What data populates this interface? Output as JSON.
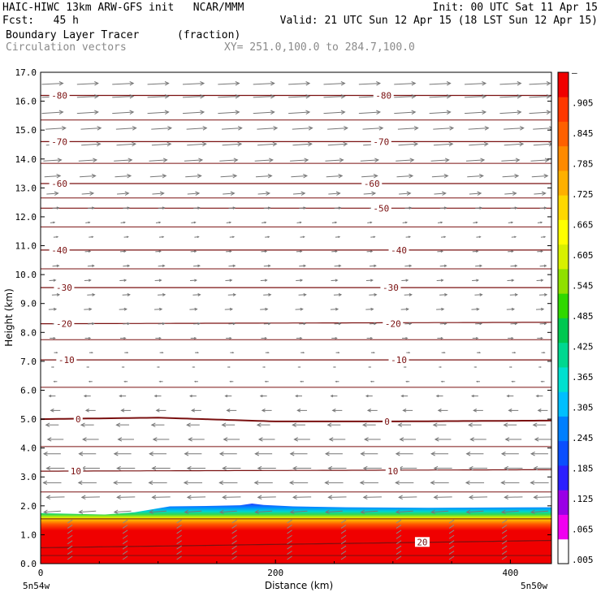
{
  "header": {
    "line1_left": "HAIC-HIWC 13km ARW-GFS init   NCAR/MMM",
    "line1_right": "Init: 00 UTC Sat 11 Apr 15",
    "line2_left": "Fcst:   45 h",
    "line2_right": "Valid: 21 UTC Sun 12 Apr 15 (18 LST Sun 12 Apr 15)",
    "line3_field": "Boundary Layer Tracer",
    "line3_unit": "(fraction)",
    "line4_overlay": "Circulation vectors",
    "line4_xy": "XY= 251.0,100.0 to 284.7,100.0"
  },
  "axes": {
    "ylabel": "Height (km)",
    "xlabel": "Distance (km)",
    "left_end": "5n54w",
    "right_end": "5n50w"
  },
  "chart_data": {
    "type": "heatmap",
    "title": "Boundary Layer Tracer",
    "xlabel": "Distance (km)",
    "ylabel": "Height (km)",
    "xlim": [
      0,
      435
    ],
    "ylim": [
      0,
      17
    ],
    "x_ticks": [
      0,
      200,
      400
    ],
    "y_ticks": [
      "0.0",
      "1.0",
      "2.0",
      "3.0",
      "4.0",
      "5.0",
      "6.0",
      "7.0",
      "8.0",
      "9.0",
      "10.0",
      "11.0",
      "12.0",
      "13.0",
      "14.0",
      "15.0",
      "16.0",
      "17.0"
    ],
    "colorbar": {
      "labels": [
        ".005",
        ".065",
        ".125",
        ".185",
        ".245",
        ".305",
        ".365",
        ".425",
        ".485",
        ".545",
        ".605",
        ".665",
        ".725",
        ".785",
        ".845",
        ".905",
        "–"
      ],
      "colors": [
        "#ffffff",
        "#f000f0",
        "#9a00e6",
        "#2c1fff",
        "#0a4fff",
        "#007fff",
        "#00bfff",
        "#00e0d0",
        "#00d890",
        "#00c850",
        "#30d800",
        "#90e000",
        "#d8f000",
        "#ffff00",
        "#ffd800",
        "#ffb000",
        "#ff8a00",
        "#ff6000",
        "#ff3800",
        "#f00000"
      ]
    },
    "tracer_layer": {
      "top_km": [
        [
          0,
          1.75
        ],
        [
          30,
          1.72
        ],
        [
          55,
          1.7
        ],
        [
          80,
          1.78
        ],
        [
          110,
          1.98
        ],
        [
          150,
          2.0
        ],
        [
          170,
          2.02
        ],
        [
          180,
          2.08
        ],
        [
          190,
          2.03
        ],
        [
          215,
          1.98
        ],
        [
          260,
          1.95
        ],
        [
          330,
          1.93
        ],
        [
          435,
          1.95
        ]
      ],
      "blue_fringe_km": 0.22
    },
    "contours": {
      "name": "temperature (C)",
      "levels": [
        {
          "value": 20,
          "label": "20",
          "heights": [
            [
              0,
              0.55
            ],
            [
              435,
              0.8
            ]
          ],
          "labels_at": [
            [
              325,
              0.75
            ]
          ]
        },
        {
          "value": 10,
          "label": "10",
          "heights": [
            [
              0,
              3.2
            ],
            [
              435,
              3.25
            ]
          ],
          "labels_at": [
            [
              30,
              3.2
            ],
            [
              300,
              3.2
            ]
          ]
        },
        {
          "value": 0,
          "label": "0",
          "heights": [
            [
              0,
              5.0
            ],
            [
              100,
              5.05
            ],
            [
              200,
              4.92
            ],
            [
              300,
              4.92
            ],
            [
              435,
              4.95
            ]
          ],
          "labels_at": [
            [
              32,
              5.0
            ],
            [
              295,
              4.92
            ]
          ]
        },
        {
          "value": -10,
          "label": "-10",
          "heights": [
            [
              0,
              7.05
            ],
            [
              435,
              7.05
            ]
          ],
          "labels_at": [
            [
              22,
              7.05
            ],
            [
              305,
              7.05
            ]
          ]
        },
        {
          "value": -20,
          "label": "-20",
          "heights": [
            [
              0,
              8.3
            ],
            [
              435,
              8.35
            ]
          ],
          "labels_at": [
            [
              20,
              8.3
            ],
            [
              300,
              8.3
            ]
          ]
        },
        {
          "value": -30,
          "label": "-30",
          "heights": [
            [
              0,
              9.55
            ],
            [
              435,
              9.55
            ]
          ],
          "labels_at": [
            [
              20,
              9.55
            ],
            [
              298,
              9.55
            ]
          ]
        },
        {
          "value": -40,
          "label": "-40",
          "heights": [
            [
              0,
              10.85
            ],
            [
              435,
              10.85
            ]
          ],
          "labels_at": [
            [
              16,
              10.85
            ],
            [
              305,
              10.85
            ]
          ]
        },
        {
          "value": -50,
          "label": "-50",
          "heights": [
            [
              0,
              12.3
            ],
            [
              435,
              12.3
            ]
          ],
          "labels_at": [
            [
              290,
              12.3
            ]
          ]
        },
        {
          "value": -60,
          "label": "-60",
          "heights": [
            [
              0,
              13.15
            ],
            [
              435,
              13.15
            ]
          ],
          "labels_at": [
            [
              16,
              13.15
            ],
            [
              282,
              13.15
            ]
          ]
        },
        {
          "value": -70,
          "label": "-70",
          "heights": [
            [
              0,
              14.6
            ],
            [
              435,
              14.6
            ]
          ],
          "labels_at": [
            [
              16,
              14.6
            ],
            [
              290,
              14.6
            ]
          ]
        },
        {
          "value": -80,
          "label": "-80",
          "heights": [
            [
              0,
              16.2
            ],
            [
              435,
              16.2
            ]
          ],
          "labels_at": [
            [
              16,
              16.2
            ],
            [
              292,
              16.2
            ]
          ]
        }
      ],
      "unlabeled_levels_km": [
        0.28,
        1.55,
        2.48,
        4.05,
        6.1,
        7.75,
        10.2,
        11.65,
        12.65,
        13.85,
        15.35
      ]
    },
    "vectors": {
      "name": "Circulation vectors",
      "x_positions_km": [
        10,
        40,
        70,
        100,
        130,
        160,
        190,
        220,
        250,
        280,
        310,
        340,
        370,
        400,
        425
      ],
      "rows": [
        {
          "z_km": 16.6,
          "u": 1.0,
          "w": 0.05
        },
        {
          "z_km": 16.15,
          "u": 1.0,
          "w": 0.05
        },
        {
          "z_km": 15.6,
          "u": 1.0,
          "w": 0.06
        },
        {
          "z_km": 15.05,
          "u": 0.95,
          "w": 0.06
        },
        {
          "z_km": 14.5,
          "u": 0.9,
          "w": 0.06
        },
        {
          "z_km": 13.95,
          "u": 0.85,
          "w": 0.05
        },
        {
          "z_km": 13.4,
          "u": 0.75,
          "w": 0.05
        },
        {
          "z_km": 12.8,
          "u": 0.55,
          "w": 0.04
        },
        {
          "z_km": 12.3,
          "u": 0.3,
          "w": 0.03
        },
        {
          "z_km": 11.8,
          "u": 0.2,
          "w": 0.02
        },
        {
          "z_km": 11.3,
          "u": 0.2,
          "w": 0.02
        },
        {
          "z_km": 10.8,
          "u": 0.25,
          "w": 0.02
        },
        {
          "z_km": 10.3,
          "u": 0.3,
          "w": 0.02
        },
        {
          "z_km": 9.8,
          "u": 0.3,
          "w": 0.02
        },
        {
          "z_km": 9.3,
          "u": 0.35,
          "w": 0.02
        },
        {
          "z_km": 8.8,
          "u": 0.35,
          "w": 0.02
        },
        {
          "z_km": 8.3,
          "u": 0.3,
          "w": 0.02
        },
        {
          "z_km": 7.8,
          "u": 0.25,
          "w": 0.0
        },
        {
          "z_km": 7.3,
          "u": 0.15,
          "w": 0.0
        },
        {
          "z_km": 6.8,
          "u": 0.1,
          "w": 0.0
        },
        {
          "z_km": 6.3,
          "u": -0.15,
          "w": 0.0
        },
        {
          "z_km": 5.8,
          "u": -0.3,
          "w": 0.0
        },
        {
          "z_km": 5.3,
          "u": -0.45,
          "w": 0.0
        },
        {
          "z_km": 4.8,
          "u": -0.6,
          "w": 0.0
        },
        {
          "z_km": 4.3,
          "u": -0.75,
          "w": 0.0
        },
        {
          "z_km": 3.8,
          "u": -0.8,
          "w": 0.0
        },
        {
          "z_km": 3.3,
          "u": -0.85,
          "w": 0.0
        },
        {
          "z_km": 2.8,
          "u": -0.85,
          "w": 0.0
        },
        {
          "z_km": 2.3,
          "u": -0.85,
          "w": -0.02
        },
        {
          "z_km": 1.8,
          "u": -0.8,
          "w": -0.05
        }
      ]
    }
  }
}
